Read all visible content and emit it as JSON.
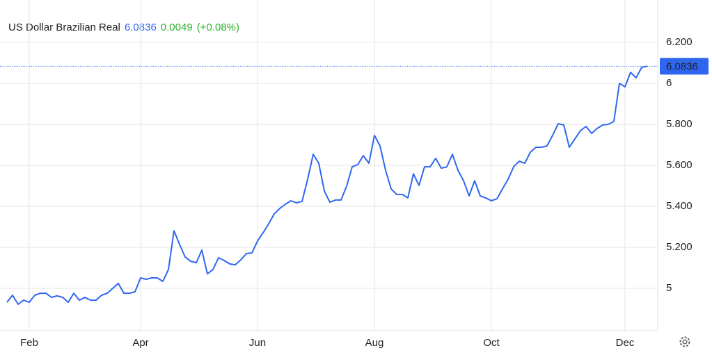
{
  "chart_data": {
    "type": "line",
    "title": "US Dollar Brazilian Real",
    "price": 6.0836,
    "change": 0.0049,
    "change_pct": "(+0.08%)",
    "color": "#2f66f0",
    "price_color": "#2f66f0",
    "change_color": "#2bb52b",
    "grid": true,
    "ylim": [
      4.8,
      6.4
    ],
    "yticks": [
      5,
      {
        "value": 5.2,
        "label": "5.200"
      },
      {
        "value": 5.4,
        "label": "5.400"
      },
      {
        "value": 5.6,
        "label": "5.600"
      },
      {
        "value": 5.8,
        "label": "5.800"
      },
      6,
      {
        "value": 6.2,
        "label": "6.200"
      }
    ],
    "categories": [
      null,
      null,
      null,
      null,
      "Feb",
      null,
      null,
      null,
      null,
      null,
      null,
      null,
      null,
      null,
      null,
      null,
      null,
      null,
      null,
      null,
      null,
      null,
      null,
      null,
      "Apr",
      null,
      null,
      null,
      null,
      null,
      null,
      null,
      null,
      null,
      null,
      null,
      null,
      null,
      null,
      null,
      null,
      null,
      null,
      null,
      null,
      "Jun",
      null,
      null,
      null,
      null,
      null,
      null,
      null,
      null,
      null,
      null,
      null,
      null,
      null,
      null,
      null,
      null,
      null,
      null,
      null,
      null,
      "Aug",
      null,
      null,
      null,
      null,
      null,
      null,
      null,
      null,
      null,
      null,
      null,
      null,
      null,
      null,
      null,
      null,
      null,
      null,
      null,
      null,
      "Oct",
      null,
      null,
      null,
      null,
      null,
      null,
      null,
      null,
      null,
      null,
      null,
      null,
      null,
      null,
      null,
      null,
      null,
      null,
      null,
      null,
      null,
      null,
      null,
      "Dec",
      null,
      null,
      null,
      null
    ],
    "values": [
      4.932,
      4.966,
      4.922,
      4.942,
      4.932,
      4.966,
      4.976,
      4.976,
      4.956,
      4.963,
      4.956,
      4.932,
      4.976,
      4.942,
      4.956,
      4.942,
      4.942,
      4.966,
      4.976,
      5.0,
      5.024,
      4.976,
      4.976,
      4.983,
      5.051,
      5.044,
      5.051,
      5.051,
      5.034,
      5.092,
      5.281,
      5.214,
      5.153,
      5.132,
      5.125,
      5.186,
      5.071,
      5.092,
      5.149,
      5.136,
      5.119,
      5.115,
      5.139,
      5.169,
      5.173,
      5.231,
      5.271,
      5.315,
      5.363,
      5.39,
      5.41,
      5.427,
      5.417,
      5.424,
      5.532,
      5.654,
      5.61,
      5.475,
      5.42,
      5.431,
      5.431,
      5.498,
      5.593,
      5.603,
      5.647,
      5.61,
      5.746,
      5.695,
      5.576,
      5.485,
      5.458,
      5.458,
      5.441,
      5.559,
      5.502,
      5.593,
      5.593,
      5.634,
      5.586,
      5.593,
      5.654,
      5.576,
      5.525,
      5.451,
      5.525,
      5.451,
      5.441,
      5.427,
      5.437,
      5.485,
      5.532,
      5.593,
      5.62,
      5.61,
      5.664,
      5.688,
      5.688,
      5.695,
      5.746,
      5.803,
      5.797,
      5.688,
      5.729,
      5.769,
      5.79,
      5.756,
      5.78,
      5.797,
      5.8,
      5.814,
      6.0,
      5.983,
      6.054,
      6.027,
      6.078,
      6.0836
    ]
  }
}
